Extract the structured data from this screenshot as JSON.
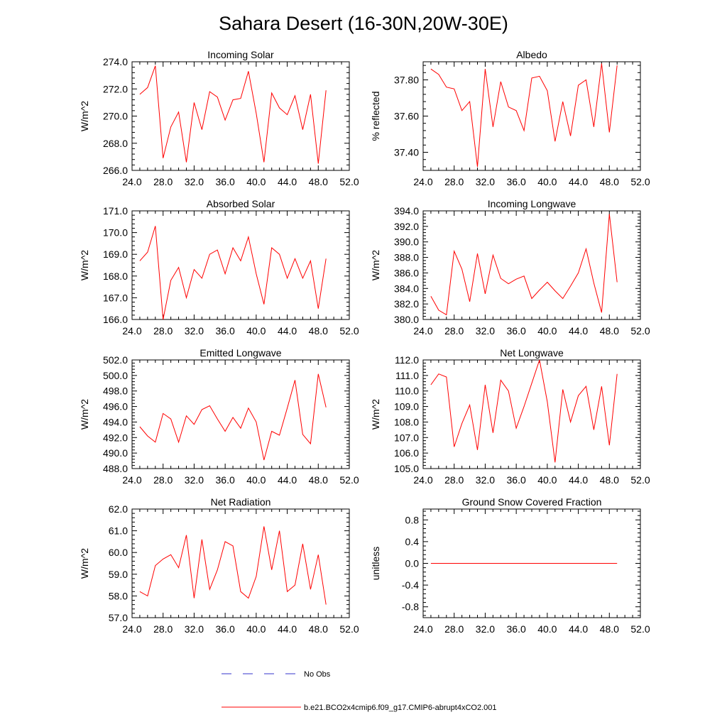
{
  "figure": {
    "title": "Sahara Desert (16-30N,20W-30E)",
    "colors": {
      "model": "#ff0000",
      "obs": "#3333cc",
      "axis": "#000000"
    }
  },
  "legend": {
    "obs_label": "No Obs",
    "model_label": "b.e21.BCO2x4cmip6.f09_g17.CMIP6-abrupt4xCO2.001"
  },
  "chart_data": [
    {
      "type": "line",
      "title": "Incoming Solar",
      "ylabel": "W/m^2",
      "xlim": [
        24,
        52
      ],
      "ylim": [
        266,
        274
      ],
      "xticks": [
        24,
        28,
        32,
        36,
        40,
        44,
        48,
        52
      ],
      "xticklabels": [
        "24.0",
        "28.0",
        "32.0",
        "36.0",
        "40.0",
        "44.0",
        "48.0",
        "52.0"
      ],
      "yticks": [
        266,
        268,
        270,
        272,
        274
      ],
      "yticklabels": [
        "266.0",
        "268.0",
        "270.0",
        "272.0",
        "274.0"
      ],
      "x": [
        25,
        26,
        27,
        28,
        29,
        30,
        31,
        32,
        33,
        34,
        35,
        36,
        37,
        38,
        39,
        40,
        41,
        42,
        43,
        44,
        45,
        46,
        47,
        48,
        49
      ],
      "series": [
        {
          "values": [
            271.6,
            272.1,
            273.7,
            266.9,
            269.2,
            270.3,
            266.6,
            271.0,
            269.0,
            271.8,
            271.4,
            269.7,
            271.2,
            271.3,
            273.3,
            270.2,
            266.6,
            271.7,
            270.6,
            270.1,
            271.5,
            269.0,
            271.6,
            266.5,
            271.9
          ]
        }
      ]
    },
    {
      "type": "line",
      "title": "Albedo",
      "ylabel": "% reflected",
      "xlim": [
        24,
        52
      ],
      "ylim": [
        37.3,
        37.9
      ],
      "xticks": [
        24,
        28,
        32,
        36,
        40,
        44,
        48,
        52
      ],
      "xticklabels": [
        "24.0",
        "28.0",
        "32.0",
        "36.0",
        "40.0",
        "44.0",
        "48.0",
        "52.0"
      ],
      "yticks": [
        37.4,
        37.6,
        37.8
      ],
      "yticklabels": [
        "37.40",
        "37.60",
        "37.80"
      ],
      "x": [
        25,
        26,
        27,
        28,
        29,
        30,
        31,
        32,
        33,
        34,
        35,
        36,
        37,
        38,
        39,
        40,
        41,
        42,
        43,
        44,
        45,
        46,
        47,
        48,
        49
      ],
      "series": [
        {
          "values": [
            37.86,
            37.83,
            37.76,
            37.75,
            37.63,
            37.68,
            37.32,
            37.86,
            37.54,
            37.79,
            37.65,
            37.63,
            37.52,
            37.81,
            37.82,
            37.74,
            37.46,
            37.68,
            37.49,
            37.77,
            37.8,
            37.54,
            37.89,
            37.51,
            37.88
          ]
        }
      ]
    },
    {
      "type": "line",
      "title": "Absorbed Solar",
      "ylabel": "W/m^2",
      "xlim": [
        24,
        52
      ],
      "ylim": [
        166,
        171
      ],
      "xticks": [
        24,
        28,
        32,
        36,
        40,
        44,
        48,
        52
      ],
      "xticklabels": [
        "24.0",
        "28.0",
        "32.0",
        "36.0",
        "40.0",
        "44.0",
        "48.0",
        "52.0"
      ],
      "yticks": [
        166,
        167,
        168,
        169,
        170,
        171
      ],
      "yticklabels": [
        "166.0",
        "167.0",
        "168.0",
        "169.0",
        "170.0",
        "171.0"
      ],
      "x": [
        25,
        26,
        27,
        28,
        29,
        30,
        31,
        32,
        33,
        34,
        35,
        36,
        37,
        38,
        39,
        40,
        41,
        42,
        43,
        44,
        45,
        46,
        47,
        48,
        49
      ],
      "series": [
        {
          "values": [
            168.7,
            169.1,
            170.3,
            166.0,
            167.8,
            168.4,
            167.0,
            168.3,
            167.9,
            169.0,
            169.2,
            168.1,
            169.3,
            168.7,
            169.8,
            168.1,
            166.7,
            169.3,
            169.0,
            167.9,
            168.8,
            167.9,
            168.7,
            166.5,
            168.8
          ]
        }
      ]
    },
    {
      "type": "line",
      "title": "Incoming Longwave",
      "ylabel": "W/m^2",
      "xlim": [
        24,
        52
      ],
      "ylim": [
        380,
        394
      ],
      "xticks": [
        24,
        28,
        32,
        36,
        40,
        44,
        48,
        52
      ],
      "xticklabels": [
        "24.0",
        "28.0",
        "32.0",
        "36.0",
        "40.0",
        "44.0",
        "48.0",
        "52.0"
      ],
      "yticks": [
        380,
        382,
        384,
        386,
        388,
        390,
        392,
        394
      ],
      "yticklabels": [
        "380.0",
        "382.0",
        "384.0",
        "386.0",
        "388.0",
        "390.0",
        "392.0",
        "394.0"
      ],
      "x": [
        25,
        26,
        27,
        28,
        29,
        30,
        31,
        32,
        33,
        34,
        35,
        36,
        37,
        38,
        39,
        40,
        41,
        42,
        43,
        44,
        45,
        46,
        47,
        48,
        49
      ],
      "series": [
        {
          "values": [
            383.0,
            381.2,
            380.6,
            388.8,
            386.5,
            382.3,
            388.5,
            383.3,
            388.3,
            385.3,
            384.6,
            385.2,
            385.6,
            382.7,
            383.8,
            384.8,
            383.7,
            382.7,
            384.3,
            386.0,
            389.1,
            384.7,
            380.9,
            393.6,
            384.8
          ]
        }
      ]
    },
    {
      "type": "line",
      "title": "Emitted Longwave",
      "ylabel": "W/m^2",
      "xlim": [
        24,
        52
      ],
      "ylim": [
        488,
        502
      ],
      "xticks": [
        24,
        28,
        32,
        36,
        40,
        44,
        48,
        52
      ],
      "xticklabels": [
        "24.0",
        "28.0",
        "32.0",
        "36.0",
        "40.0",
        "44.0",
        "48.0",
        "52.0"
      ],
      "yticks": [
        488,
        490,
        492,
        494,
        496,
        498,
        500,
        502
      ],
      "yticklabels": [
        "488.0",
        "490.0",
        "492.0",
        "494.0",
        "496.0",
        "498.0",
        "500.0",
        "502.0"
      ],
      "x": [
        25,
        26,
        27,
        28,
        29,
        30,
        31,
        32,
        33,
        34,
        35,
        36,
        37,
        38,
        39,
        40,
        41,
        42,
        43,
        44,
        45,
        46,
        47,
        48,
        49
      ],
      "series": [
        {
          "values": [
            493.4,
            492.2,
            491.4,
            495.1,
            494.4,
            491.4,
            494.8,
            493.7,
            495.6,
            496.1,
            494.4,
            492.8,
            494.6,
            493.2,
            495.8,
            494.0,
            489.1,
            492.8,
            492.3,
            495.8,
            499.4,
            492.4,
            491.2,
            500.2,
            495.9
          ]
        }
      ]
    },
    {
      "type": "line",
      "title": "Net Longwave",
      "ylabel": "W/m^2",
      "xlim": [
        24,
        52
      ],
      "ylim": [
        105,
        112
      ],
      "xticks": [
        24,
        28,
        32,
        36,
        40,
        44,
        48,
        52
      ],
      "xticklabels": [
        "24.0",
        "28.0",
        "32.0",
        "36.0",
        "40.0",
        "44.0",
        "48.0",
        "52.0"
      ],
      "yticks": [
        105,
        106,
        107,
        108,
        109,
        110,
        111,
        112
      ],
      "yticklabels": [
        "105.0",
        "106.0",
        "107.0",
        "108.0",
        "109.0",
        "110.0",
        "111.0",
        "112.0"
      ],
      "x": [
        25,
        26,
        27,
        28,
        29,
        30,
        31,
        32,
        33,
        34,
        35,
        36,
        37,
        38,
        39,
        40,
        41,
        42,
        43,
        44,
        45,
        46,
        47,
        48,
        49
      ],
      "series": [
        {
          "values": [
            110.4,
            111.1,
            110.9,
            106.4,
            107.9,
            109.1,
            106.2,
            110.4,
            107.3,
            110.7,
            110.0,
            107.6,
            109.0,
            110.5,
            112.0,
            109.3,
            105.4,
            110.1,
            108.0,
            109.7,
            110.3,
            107.5,
            110.3,
            106.5,
            111.1
          ]
        }
      ]
    },
    {
      "type": "line",
      "title": "Net Radiation",
      "ylabel": "W/m^2",
      "xlim": [
        24,
        52
      ],
      "ylim": [
        57,
        62
      ],
      "xticks": [
        24,
        28,
        32,
        36,
        40,
        44,
        48,
        52
      ],
      "xticklabels": [
        "24.0",
        "28.0",
        "32.0",
        "36.0",
        "40.0",
        "44.0",
        "48.0",
        "52.0"
      ],
      "yticks": [
        57,
        58,
        59,
        60,
        61,
        62
      ],
      "yticklabels": [
        "57.0",
        "58.0",
        "59.0",
        "60.0",
        "61.0",
        "62.0"
      ],
      "x": [
        25,
        26,
        27,
        28,
        29,
        30,
        31,
        32,
        33,
        34,
        35,
        36,
        37,
        38,
        39,
        40,
        41,
        42,
        43,
        44,
        45,
        46,
        47,
        48,
        49
      ],
      "series": [
        {
          "values": [
            58.2,
            58.0,
            59.4,
            59.7,
            59.9,
            59.3,
            60.8,
            57.9,
            60.6,
            58.3,
            59.2,
            60.5,
            60.3,
            58.2,
            57.9,
            58.9,
            61.2,
            59.2,
            61.0,
            58.2,
            58.5,
            60.4,
            58.3,
            59.9,
            57.6
          ]
        }
      ]
    },
    {
      "type": "line",
      "title": "Ground Snow Covered Fraction",
      "ylabel": "unitless",
      "xlim": [
        24,
        52
      ],
      "ylim": [
        -1.0,
        1.0
      ],
      "xticks": [
        24,
        28,
        32,
        36,
        40,
        44,
        48,
        52
      ],
      "xticklabels": [
        "24.0",
        "28.0",
        "32.0",
        "36.0",
        "40.0",
        "44.0",
        "48.0",
        "52.0"
      ],
      "yticks": [
        -0.8,
        -0.4,
        0.0,
        0.4,
        0.8
      ],
      "yticklabels": [
        "-0.8",
        "-0.4",
        "0.0",
        "0.4",
        "0.8"
      ],
      "x": [
        25,
        26,
        27,
        28,
        29,
        30,
        31,
        32,
        33,
        34,
        35,
        36,
        37,
        38,
        39,
        40,
        41,
        42,
        43,
        44,
        45,
        46,
        47,
        48,
        49
      ],
      "series": [
        {
          "values": [
            0,
            0,
            0,
            0,
            0,
            0,
            0,
            0,
            0,
            0,
            0,
            0,
            0,
            0,
            0,
            0,
            0,
            0,
            0,
            0,
            0,
            0,
            0,
            0,
            0
          ]
        }
      ]
    }
  ]
}
